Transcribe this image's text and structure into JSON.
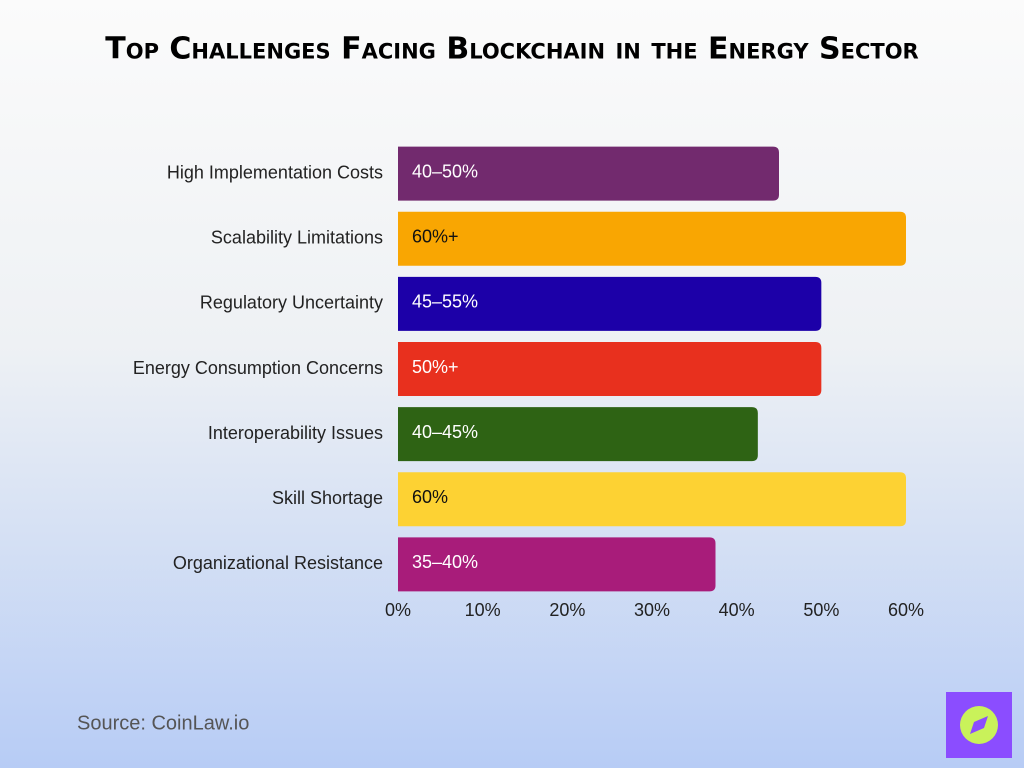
{
  "chart_data": {
    "type": "bar",
    "orientation": "horizontal",
    "title": "Top Challenges Facing Blockchain in the Energy Sector",
    "categories": [
      "High Implementation Costs",
      "Scalability Limitations",
      "Regulatory Uncertainty",
      "Energy Consumption Concerns",
      "Interoperability Issues",
      "Skill Shortage",
      "Organizational Resistance"
    ],
    "values": [
      45,
      60,
      50,
      50,
      42.5,
      60,
      37.5
    ],
    "value_labels": [
      "40–50%",
      "60%+",
      "45–55%",
      "50%+",
      "40–45%",
      "60%",
      "35–40%"
    ],
    "colors": [
      "#722a6e",
      "#f9a602",
      "#1c00a8",
      "#e8301e",
      "#2e6314",
      "#fdd233",
      "#a81c7a"
    ],
    "xlim": [
      0,
      60
    ],
    "xticks": [
      {
        "value": 0,
        "label": "0%"
      },
      {
        "value": 10,
        "label": "10%"
      },
      {
        "value": 20,
        "label": "20%"
      },
      {
        "value": 30,
        "label": "30%"
      },
      {
        "value": 40,
        "label": "40%"
      },
      {
        "value": 50,
        "label": "50%"
      },
      {
        "value": 60,
        "label": "60%"
      }
    ],
    "grid": false,
    "source": "Source: CoinLaw.io"
  }
}
